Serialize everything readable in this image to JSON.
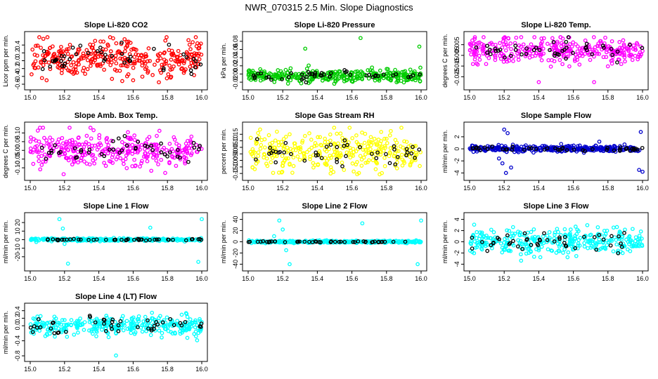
{
  "figure": {
    "title": "NWR_070315  2.5 Min. Slope Diagnostics"
  },
  "chart_data": [
    {
      "type": "scatter",
      "title": "Slope Li-820 CO2",
      "ylabel": "Licor ppm per min.",
      "xlim": [
        15.0,
        16.0
      ],
      "ylim": [
        -0.6,
        0.6
      ],
      "xticks": [
        "15.0",
        "15.2",
        "15.4",
        "15.6",
        "15.8",
        "16.0"
      ],
      "yticks": [
        "-0.6",
        "-0.4",
        "-0.2",
        "0.0",
        "0.2",
        "0.4"
      ],
      "color": "#ff0000",
      "series": [
        {
          "name": "all",
          "center": 0.05,
          "spread": 0.22,
          "count": 330,
          "outliers": [
            [
              15.55,
              0.55
            ],
            [
              15.6,
              -0.5
            ],
            [
              15.75,
              -0.55
            ]
          ]
        },
        {
          "name": "highlight",
          "center": 0.05,
          "spread": 0.2,
          "count": 45
        }
      ]
    },
    {
      "type": "scatter",
      "title": "Slope Li-820 Pressure",
      "ylabel": "kPa per min.",
      "xlim": [
        15.0,
        16.0
      ],
      "ylim": [
        -0.025,
        0.09
      ],
      "xticks": [
        "15.0",
        "15.2",
        "15.4",
        "15.6",
        "15.8",
        "16.0"
      ],
      "yticks": [
        "-0.02",
        "0.00",
        "0.02",
        "0.04",
        "0.06",
        "0.08"
      ],
      "color": "#00cc00",
      "series": [
        {
          "name": "all",
          "center": -0.005,
          "spread": 0.007,
          "count": 330,
          "outliers": [
            [
              15.33,
              0.062
            ],
            [
              15.65,
              0.088
            ],
            [
              15.99,
              0.067
            ],
            [
              15.85,
              0.01
            ]
          ]
        },
        {
          "name": "highlight",
          "center": -0.005,
          "spread": 0.006,
          "count": 45
        }
      ]
    },
    {
      "type": "scatter",
      "title": "Slope Li-820 Temp.",
      "ylabel": "degrees C per min.",
      "xlim": [
        15.0,
        16.0
      ],
      "ylim": [
        -0.032,
        0.012
      ],
      "xticks": [
        "15.0",
        "15.2",
        "15.4",
        "15.6",
        "15.8",
        "16.0"
      ],
      "yticks": [
        "-0.025",
        "-0.015",
        "-0.005",
        "0.005"
      ],
      "color": "#ff00ff",
      "series": [
        {
          "name": "all",
          "center": 0.0,
          "spread": 0.006,
          "count": 330,
          "outliers": [
            [
              15.43,
              0.011
            ],
            [
              15.4,
              -0.03
            ],
            [
              15.72,
              -0.03
            ]
          ]
        },
        {
          "name": "highlight",
          "center": 0.0,
          "spread": 0.004,
          "count": 45
        }
      ]
    },
    {
      "type": "scatter",
      "title": "Slope Amb. Box Temp.",
      "ylabel": "degrees C per min.",
      "xlim": [
        15.0,
        16.0
      ],
      "ylim": [
        -0.14,
        0.13
      ],
      "xticks": [
        "15.0",
        "15.2",
        "15.4",
        "15.6",
        "15.8",
        "16.0"
      ],
      "yticks": [
        "-0.10",
        "-0.05",
        "0.00",
        "0.05",
        "0.10"
      ],
      "color": "#ff00ff",
      "series": [
        {
          "name": "all",
          "center": 0.0,
          "spread": 0.05,
          "count": 330
        },
        {
          "name": "highlight",
          "center": 0.0,
          "spread": 0.04,
          "count": 45
        }
      ]
    },
    {
      "type": "scatter",
      "title": "Slope Gas Stream RH",
      "ylabel": "percent per min.",
      "xlim": [
        15.0,
        16.0
      ],
      "ylim": [
        -0.16,
        0.2
      ],
      "xticks": [
        "15.0",
        "15.2",
        "15.4",
        "15.6",
        "15.8",
        "16.0"
      ],
      "yticks": [
        "-0.15",
        "-0.10",
        "-0.05",
        "0.00",
        "0.05",
        "0.10",
        "0.15"
      ],
      "color": "#ffff00",
      "series": [
        {
          "name": "all",
          "center": 0.01,
          "spread": 0.07,
          "count": 330
        },
        {
          "name": "highlight",
          "center": 0.01,
          "spread": 0.06,
          "count": 45
        }
      ]
    },
    {
      "type": "scatter",
      "title": "Slope Sample Flow",
      "ylabel": "ml/min per min.",
      "xlim": [
        15.0,
        16.0
      ],
      "ylim": [
        -4.3,
        3.5
      ],
      "xticks": [
        "15.0",
        "15.2",
        "15.4",
        "15.6",
        "15.8",
        "16.0"
      ],
      "yticks": [
        "-4",
        "-2",
        "0",
        "2"
      ],
      "color": "#0000cc",
      "series": [
        {
          "name": "all",
          "center": 0.0,
          "spread": 0.25,
          "count": 330,
          "outliers": [
            [
              15.2,
              3.2
            ],
            [
              15.22,
              2.6
            ],
            [
              15.17,
              -1.6
            ],
            [
              15.19,
              -2.4
            ],
            [
              15.21,
              -4.0
            ],
            [
              15.24,
              -3.1
            ],
            [
              15.75,
              1.2
            ],
            [
              15.99,
              2.8
            ],
            [
              15.98,
              -3.5
            ],
            [
              16.0,
              -3.8
            ]
          ]
        },
        {
          "name": "highlight",
          "center": 0.0,
          "spread": 0.15,
          "count": 45
        }
      ]
    },
    {
      "type": "scatter",
      "title": "Slope Line 1 Flow",
      "ylabel": "ml/min per min.",
      "xlim": [
        15.0,
        16.0
      ],
      "ylim": [
        -30,
        25
      ],
      "xticks": [
        "15.0",
        "15.2",
        "15.4",
        "15.6",
        "15.8",
        "16.0"
      ],
      "yticks": [
        "-20",
        "-10",
        "0",
        "10",
        "20"
      ],
      "color": "#00ffff",
      "series": [
        {
          "name": "all",
          "center": 0.0,
          "spread": 0.8,
          "count": 330,
          "outliers": [
            [
              15.17,
              24
            ],
            [
              15.19,
              13
            ],
            [
              15.2,
              -5
            ],
            [
              15.22,
              -28
            ],
            [
              15.7,
              14
            ],
            [
              15.98,
              -26
            ],
            [
              16.0,
              24
            ]
          ]
        },
        {
          "name": "highlight",
          "center": 0.0,
          "spread": 0.4,
          "count": 45
        }
      ]
    },
    {
      "type": "scatter",
      "title": "Slope Line 2 Flow",
      "ylabel": "ml/min per min.",
      "xlim": [
        15.0,
        16.0
      ],
      "ylim": [
        -42,
        42
      ],
      "xticks": [
        "15.0",
        "15.2",
        "15.4",
        "15.6",
        "15.8",
        "16.0"
      ],
      "yticks": [
        "-40",
        "-20",
        "0",
        "20",
        "40"
      ],
      "color": "#00ffff",
      "series": [
        {
          "name": "all",
          "center": 0.0,
          "spread": 1.0,
          "count": 330,
          "outliers": [
            [
              15.18,
              38
            ],
            [
              15.2,
              22
            ],
            [
              15.15,
              10
            ],
            [
              15.22,
              -15
            ],
            [
              15.24,
              -40
            ],
            [
              15.66,
              33
            ],
            [
              15.98,
              -40
            ],
            [
              16.0,
              38
            ]
          ]
        },
        {
          "name": "highlight",
          "center": 0.0,
          "spread": 0.5,
          "count": 45
        }
      ]
    },
    {
      "type": "scatter",
      "title": "Slope Line 3 Flow",
      "ylabel": "ml/min per min.",
      "xlim": [
        15.0,
        16.0
      ],
      "ylim": [
        -4.2,
        4.2
      ],
      "xticks": [
        "15.0",
        "15.2",
        "15.4",
        "15.6",
        "15.8",
        "16.0"
      ],
      "yticks": [
        "-4",
        "-2",
        "0",
        "2",
        "4"
      ],
      "color": "#00ffff",
      "series": [
        {
          "name": "all",
          "center": 0.0,
          "spread": 1.1,
          "count": 330
        },
        {
          "name": "highlight",
          "center": 0.0,
          "spread": 0.9,
          "count": 45
        }
      ]
    },
    {
      "type": "scatter",
      "title": "Slope Line 4 (LT) Flow",
      "ylabel": "ml/min per min.",
      "xlim": [
        15.0,
        16.0
      ],
      "ylim": [
        -0.8,
        0.45
      ],
      "xticks": [
        "15.0",
        "15.2",
        "15.4",
        "15.6",
        "15.8",
        "16.0"
      ],
      "yticks": [
        "-0.8",
        "-0.4",
        "0.0",
        "0.2",
        "0.4"
      ],
      "color": "#00ffff",
      "series": [
        {
          "name": "all",
          "center": 0.0,
          "spread": 0.13,
          "count": 330,
          "outliers": [
            [
              15.5,
              -0.79
            ]
          ]
        },
        {
          "name": "highlight",
          "center": 0.0,
          "spread": 0.12,
          "count": 45
        }
      ]
    }
  ]
}
